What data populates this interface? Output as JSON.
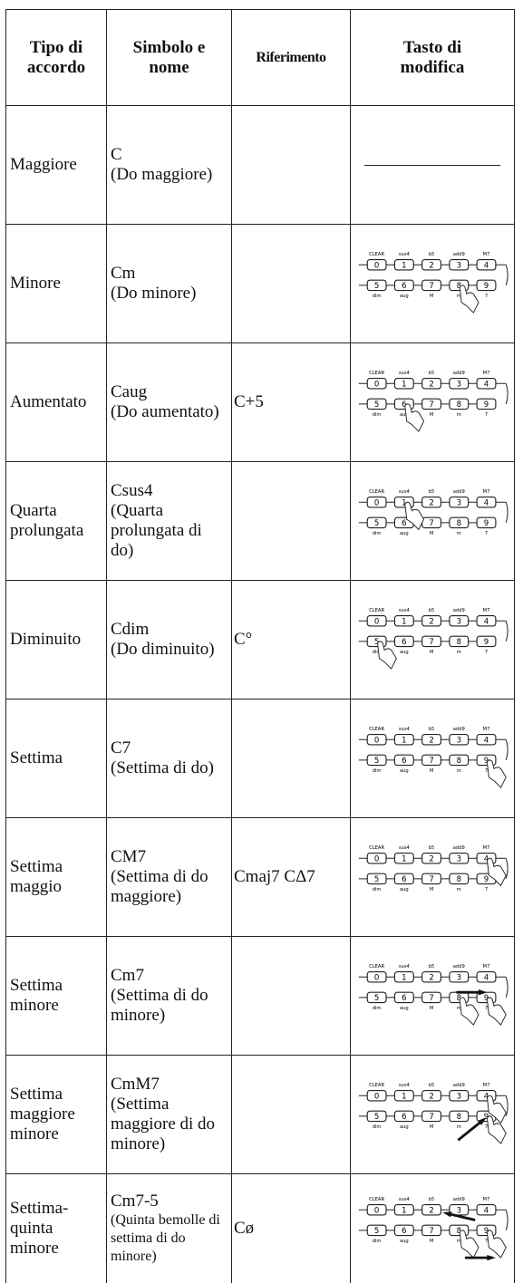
{
  "header": {
    "columns": [
      "Tipo di accordo",
      "Simbolo e nome",
      "Riferimento",
      "Tasto di modifica"
    ]
  },
  "keypad": {
    "top_labels": [
      "CLEAR",
      "sus4",
      "b5",
      "add9",
      "M7"
    ],
    "keys": [
      "0",
      "1",
      "2",
      "3",
      "4",
      "5",
      "6",
      "7",
      "8",
      "9"
    ],
    "bottom_labels": [
      "dim",
      "aug",
      "M",
      "m",
      "7"
    ]
  },
  "rows": [
    {
      "type": "Maggiore",
      "symbol": "C",
      "name": "(Do maggiore)",
      "reference": ""
    },
    {
      "type": "Minore",
      "symbol": "Cm",
      "name": "(Do minore)",
      "reference": ""
    },
    {
      "type": "Aumentato",
      "symbol": "Caug",
      "name": "(Do aumentato)",
      "reference": "C+5"
    },
    {
      "type": "Quarta prolungata",
      "symbol": "Csus4",
      "name": "(Quarta prolungata di do)",
      "reference": ""
    },
    {
      "type": "Diminuito",
      "symbol": "Cdim",
      "name": "(Do diminuito)",
      "reference": "C°"
    },
    {
      "type": "Settima",
      "symbol": "C7",
      "name": "(Settima di do)",
      "reference": ""
    },
    {
      "type": "Settima maggio",
      "symbol": "CM7",
      "name": "(Settima di do maggiore)",
      "reference": "Cmaj7 CΔ7"
    },
    {
      "type": "Settima minore",
      "symbol": "Cm7",
      "name": "(Settima di do minore)",
      "reference": ""
    },
    {
      "type": "Settima maggiore minore",
      "symbol": "CmM7",
      "name": "(Settima maggiore di do minore)",
      "reference": ""
    },
    {
      "type": "Settima-quinta minore",
      "symbol": "Cm7-5",
      "name": "(Quinta bemolle di settima di do minore)",
      "reference": "Cø"
    }
  ]
}
